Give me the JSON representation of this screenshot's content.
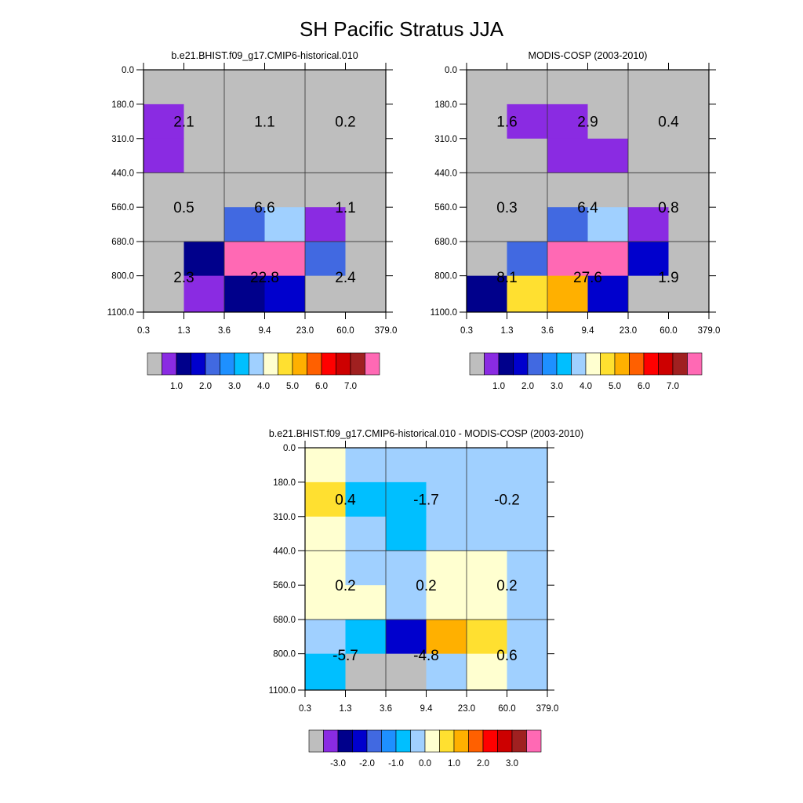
{
  "title": "SH Pacific Stratus JJA",
  "x_ticks": [
    "0.3",
    "1.3",
    "3.6",
    "9.4",
    "23.0",
    "60.0",
    "379.0"
  ],
  "y_ticks": [
    "0.0",
    "180.0",
    "310.0",
    "440.0",
    "560.0",
    "680.0",
    "800.0",
    "1100.0"
  ],
  "palette": [
    "#bebebe",
    "#8a2be2",
    "#00008b",
    "#0000cd",
    "#4169e1",
    "#1e90ff",
    "#00bfff",
    "#a0d0ff",
    "#ffffd0",
    "#ffe030",
    "#ffb000",
    "#ff6000",
    "#ff0000",
    "#cd0000",
    "#a02020",
    "#ff69b4"
  ],
  "chart_data": [
    {
      "type": "heatmap",
      "title": "b.e21.BHIST.f09_g17.CMIP6-historical.010",
      "colorbar_labels": [
        "1.0",
        "2.0",
        "3.0",
        "4.0",
        "5.0",
        "6.0",
        "7.0"
      ],
      "cell_color_index": [
        [
          0,
          0,
          0,
          0,
          0,
          0
        ],
        [
          1,
          0,
          0,
          0,
          0,
          0
        ],
        [
          1,
          0,
          0,
          0,
          0,
          0
        ],
        [
          0,
          0,
          0,
          0,
          0,
          0
        ],
        [
          0,
          0,
          4,
          7,
          1,
          0
        ],
        [
          0,
          2,
          15,
          15,
          4,
          0
        ],
        [
          0,
          1,
          2,
          3,
          0,
          0
        ]
      ],
      "box_values": [
        [
          "2.1",
          "1.1",
          "0.2"
        ],
        [
          "0.5",
          "6.6",
          "1.1"
        ],
        [
          "2.3",
          "22.8",
          "2.4"
        ]
      ]
    },
    {
      "type": "heatmap",
      "title": "MODIS-COSP (2003-2010)",
      "colorbar_labels": [
        "1.0",
        "2.0",
        "3.0",
        "4.0",
        "5.0",
        "6.0",
        "7.0"
      ],
      "cell_color_index": [
        [
          0,
          0,
          0,
          0,
          0,
          0
        ],
        [
          0,
          1,
          1,
          0,
          0,
          0
        ],
        [
          0,
          0,
          1,
          1,
          0,
          0
        ],
        [
          0,
          0,
          0,
          0,
          0,
          0
        ],
        [
          0,
          0,
          4,
          7,
          1,
          0
        ],
        [
          0,
          4,
          15,
          15,
          3,
          0
        ],
        [
          2,
          9,
          10,
          3,
          0,
          0
        ]
      ],
      "box_values": [
        [
          "1.6",
          "2.9",
          "0.4"
        ],
        [
          "0.3",
          "6.4",
          "0.8"
        ],
        [
          "8.1",
          "27.6",
          "1.9"
        ]
      ]
    },
    {
      "type": "heatmap",
      "title": "b.e21.BHIST.f09_g17.CMIP6-historical.010 - MODIS-COSP (2003-2010)",
      "colorbar_labels": [
        "-3.0",
        "-2.0",
        "-1.0",
        "0.0",
        "1.0",
        "2.0",
        "3.0"
      ],
      "cell_color_index": [
        [
          8,
          7,
          7,
          7,
          7,
          7
        ],
        [
          9,
          6,
          6,
          7,
          7,
          7
        ],
        [
          8,
          7,
          6,
          7,
          7,
          7
        ],
        [
          8,
          7,
          7,
          8,
          8,
          7
        ],
        [
          8,
          8,
          7,
          8,
          8,
          7
        ],
        [
          7,
          6,
          3,
          10,
          9,
          7
        ],
        [
          6,
          0,
          0,
          7,
          8,
          7
        ]
      ],
      "box_values": [
        [
          "0.4",
          "-1.7",
          "-0.2"
        ],
        [
          "0.2",
          "0.2",
          "0.2"
        ],
        [
          "-5.7",
          "-4.8",
          "0.6"
        ]
      ]
    }
  ]
}
